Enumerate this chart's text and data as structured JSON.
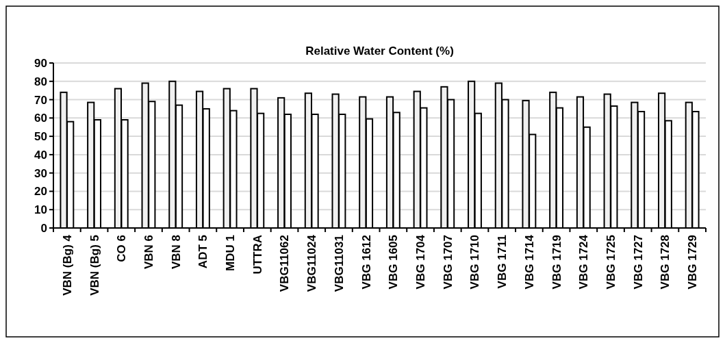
{
  "chart_data": {
    "type": "bar",
    "title": "Relative Water Content (%)",
    "categories": [
      "VBN (Bg) 4",
      "VBN (Bg) 5",
      "CO 6",
      "VBN 6",
      "VBN 8",
      "ADT 5",
      "MDU 1",
      "UTTRA",
      "VBG11062",
      "VBG11024",
      "VBG11031",
      "VBG 1612",
      "VBG 1605",
      "VBG 1704",
      "VBG 1707",
      "VBG 1710",
      "VBG 1711",
      "VBG 1714",
      "VBG 1719",
      "VBG 1724",
      "VBG 1725",
      "VBG 1727",
      "VBG 1728",
      "VBG 1729"
    ],
    "series": [
      {
        "color": "#f0f0f0",
        "values": [
          74,
          68.5,
          76,
          79,
          80,
          74.5,
          76,
          76,
          71,
          73.5,
          73,
          71.5,
          71.5,
          74.5,
          77,
          80,
          79,
          69.5,
          74,
          71.5,
          73,
          68.5,
          73.5,
          68.5
        ]
      },
      {
        "color": "#ffffff",
        "values": [
          58,
          59,
          59,
          69,
          67,
          65,
          64,
          62.5,
          62,
          62,
          62,
          59.5,
          63,
          65.5,
          70,
          62.5,
          70,
          51,
          65.5,
          55,
          66.5,
          63.5,
          58.5,
          63.5
        ]
      }
    ],
    "ylim": [
      0,
      90
    ],
    "yticks": [
      0,
      10,
      20,
      30,
      40,
      50,
      60,
      70,
      80,
      90
    ],
    "grid": "y"
  }
}
